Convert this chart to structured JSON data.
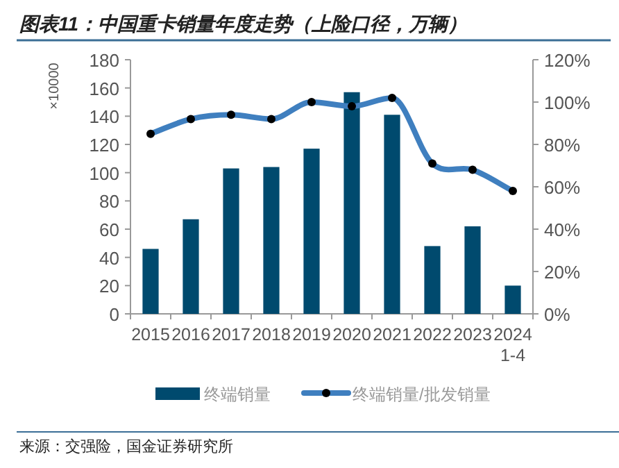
{
  "chart_data": {
    "type": "bar",
    "title": "图表11：中国重卡销量年度走势（上险口径，万辆）",
    "ylabel": "×10000",
    "categories": [
      "2015",
      "2016",
      "2017",
      "2018",
      "2019",
      "2020",
      "2021",
      "2022",
      "2023",
      "2024\n1-4"
    ],
    "series": [
      {
        "name": "终端销量",
        "color": "#004a6e",
        "values": [
          46,
          67,
          103,
          104,
          117,
          157,
          141,
          48,
          62,
          20
        ]
      },
      {
        "name": "终端销量/批发销量",
        "type": "line",
        "axis": "y2",
        "color": "#3f7fbf",
        "marker": "circle",
        "values": [
          85,
          92,
          94,
          92,
          100,
          98,
          102,
          71,
          68,
          58
        ]
      }
    ],
    "ylim": [
      0,
      180
    ],
    "yticks": [
      0,
      20,
      40,
      60,
      80,
      100,
      120,
      140,
      160,
      180
    ],
    "y2lim": [
      0,
      120
    ],
    "y2ticks": [
      {
        "value": 0,
        "label": "0%"
      },
      {
        "value": 20,
        "label": "20%"
      },
      {
        "value": 40,
        "label": "40%"
      },
      {
        "value": 60,
        "label": "60%"
      },
      {
        "value": 80,
        "label": "80%"
      },
      {
        "value": 100,
        "label": "100%"
      },
      {
        "value": 120,
        "label": "120%"
      }
    ],
    "legend": "bottom",
    "grid": false,
    "annotations": [
      "来源：交强险，国金证券研究所"
    ]
  }
}
